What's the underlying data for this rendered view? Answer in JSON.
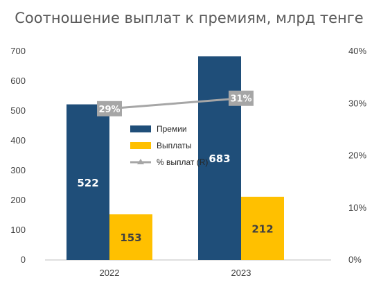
{
  "chart_data": {
    "type": "bar",
    "title": "Соотношение выплат к премиям, млрд тенге",
    "categories": [
      "2022",
      "2023"
    ],
    "series": [
      {
        "name": "Премии",
        "values": [
          522,
          683
        ],
        "labels": [
          "522",
          "683"
        ],
        "color": "#1F4E79",
        "label_color": "#ffffff"
      },
      {
        "name": "Выплаты",
        "values": [
          153,
          212
        ],
        "labels": [
          "153",
          "212"
        ],
        "color": "#FFC000",
        "label_color": "#404040"
      }
    ],
    "line_series": {
      "name": "% выплат (R)",
      "values": [
        29,
        31
      ],
      "labels": [
        "29%",
        "31%"
      ],
      "color": "#A6A6A6",
      "axis": "right"
    },
    "ylim": [
      0,
      700
    ],
    "yticks": [
      "0",
      "100",
      "200",
      "300",
      "400",
      "500",
      "600",
      "700"
    ],
    "y2lim": [
      0,
      40
    ],
    "y2ticks": [
      "0%",
      "10%",
      "20%",
      "30%",
      "40%"
    ],
    "grid": false,
    "legend_position": "center"
  }
}
